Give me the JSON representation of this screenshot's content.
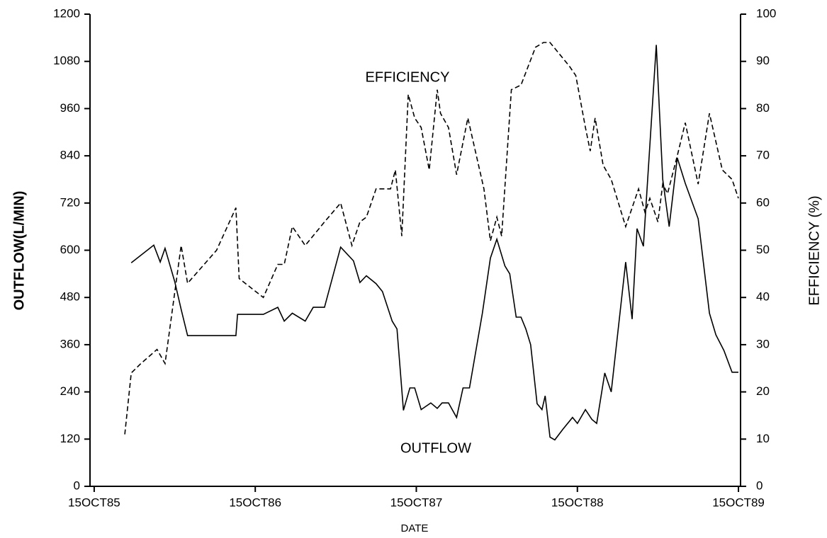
{
  "chart_data": {
    "type": "line",
    "x_label": "DATE",
    "y_label": "OUTFLOW(L/MIN)",
    "y2_label": "EFFICIENCY (%)",
    "xlim": [
      1985.764,
      1989.803
    ],
    "xticks": [
      {
        "value": 1985.79,
        "label": "15OCT85"
      },
      {
        "value": 1986.79,
        "label": "15OCT86"
      },
      {
        "value": 1987.79,
        "label": "15OCT87"
      },
      {
        "value": 1988.79,
        "label": "15OCT88"
      },
      {
        "value": 1989.79,
        "label": "15OCT89"
      }
    ],
    "ylim": [
      0,
      1200
    ],
    "yticks": [
      0,
      120,
      240,
      360,
      480,
      600,
      720,
      840,
      960,
      1080,
      1200
    ],
    "y2lim": [
      0,
      100
    ],
    "y2ticks": [
      0,
      10,
      20,
      30,
      40,
      50,
      60,
      70,
      80,
      90,
      100
    ],
    "annotations": [
      {
        "text": "EFFICIENCY"
      },
      {
        "text": "OUTFLOW"
      }
    ],
    "series": [
      {
        "name": "OUTFLOW",
        "color": "#000000",
        "dash": false,
        "x": [
          1986.02,
          1986.16,
          1986.2,
          1986.23,
          1986.29,
          1986.33,
          1986.37,
          1986.67,
          1986.68,
          1986.84,
          1986.93,
          1986.97,
          1987.02,
          1987.1,
          1987.15,
          1987.22,
          1987.32,
          1987.4,
          1987.44,
          1987.48,
          1987.54,
          1987.58,
          1987.64,
          1987.67,
          1987.71,
          1987.75,
          1987.78,
          1987.82,
          1987.88,
          1987.92,
          1987.95,
          1987.99,
          1988.04,
          1988.08,
          1988.12,
          1988.2,
          1988.25,
          1988.29,
          1988.34,
          1988.37,
          1988.41,
          1988.44,
          1988.47,
          1988.5,
          1988.54,
          1988.57,
          1988.59,
          1988.62,
          1988.65,
          1988.7,
          1988.76,
          1988.79,
          1988.84,
          1988.88,
          1988.91,
          1988.96,
          1989.0,
          1989.09,
          1989.13,
          1989.16,
          1989.2,
          1989.28,
          1989.32,
          1989.36,
          1989.41,
          1989.46,
          1989.54,
          1989.61,
          1989.65,
          1989.7,
          1989.75,
          1989.79
        ],
        "values": [
          568,
          613,
          570,
          605,
          520,
          450,
          383,
          383,
          437,
          437,
          455,
          420,
          440,
          420,
          455,
          455,
          608,
          573,
          518,
          535,
          515,
          495,
          420,
          400,
          193,
          250,
          250,
          195,
          212,
          198,
          212,
          212,
          175,
          250,
          250,
          440,
          580,
          628,
          560,
          540,
          430,
          430,
          400,
          360,
          210,
          195,
          230,
          125,
          118,
          145,
          175,
          160,
          195,
          170,
          160,
          288,
          240,
          570,
          425,
          655,
          610,
          1122,
          780,
          660,
          835,
          770,
          680,
          440,
          385,
          345,
          290,
          290
        ]
      },
      {
        "name": "EFFICIENCY",
        "color": "#000000",
        "dash": true,
        "axis": "y2",
        "x": [
          1985.98,
          1986.02,
          1986.08,
          1986.18,
          1986.23,
          1986.33,
          1986.37,
          1986.55,
          1986.67,
          1986.69,
          1986.84,
          1986.93,
          1986.97,
          1987.02,
          1987.1,
          1987.22,
          1987.32,
          1987.39,
          1987.44,
          1987.48,
          1987.54,
          1987.63,
          1987.66,
          1987.7,
          1987.74,
          1987.78,
          1987.82,
          1987.87,
          1987.92,
          1987.94,
          1987.99,
          1988.04,
          1988.11,
          1988.17,
          1988.21,
          1988.25,
          1988.29,
          1988.32,
          1988.38,
          1988.44,
          1988.53,
          1988.58,
          1988.62,
          1988.74,
          1988.78,
          1988.84,
          1988.87,
          1988.9,
          1988.95,
          1989.0,
          1989.09,
          1989.17,
          1989.21,
          1989.24,
          1989.29,
          1989.32,
          1989.35,
          1989.41,
          1989.46,
          1989.54,
          1989.61,
          1989.69,
          1989.75,
          1989.79
        ],
        "values": [
          11,
          24,
          26,
          29,
          26,
          51,
          43,
          50,
          59,
          44,
          40,
          47,
          47,
          55,
          51,
          56,
          60,
          51,
          56,
          57,
          63,
          63,
          67,
          53,
          83,
          78,
          76,
          67,
          84,
          79,
          76,
          66,
          78,
          69,
          63,
          52,
          57,
          53,
          84,
          85,
          93,
          94,
          94,
          89,
          87,
          76,
          71,
          78,
          68,
          65,
          55,
          63,
          58,
          61,
          56,
          64,
          62,
          70,
          77,
          64,
          79,
          67,
          65,
          61
        ]
      }
    ]
  }
}
